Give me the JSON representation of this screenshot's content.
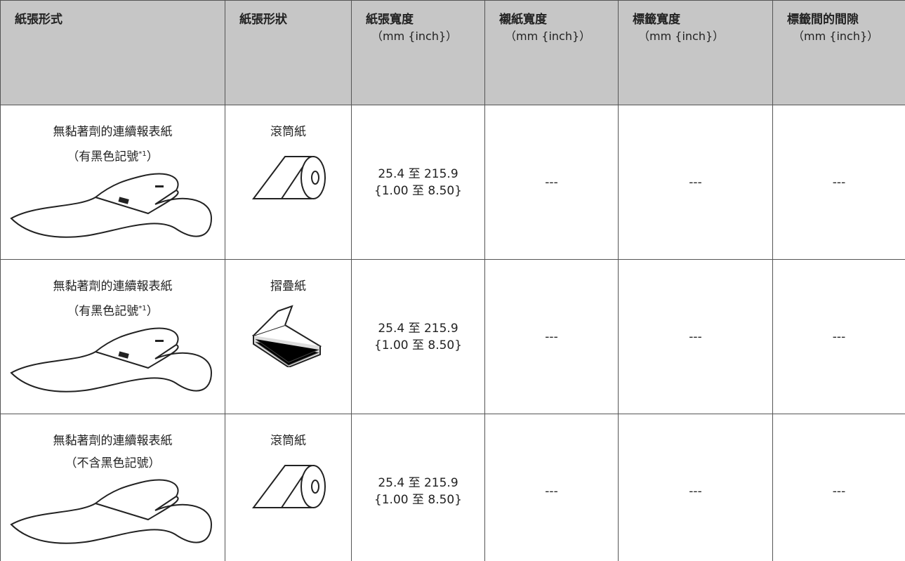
{
  "table": {
    "headers": [
      {
        "title": "紙張形式"
      },
      {
        "title": "紙張形狀"
      },
      {
        "title": "紙張寬度",
        "unit": "（mm {inch}）"
      },
      {
        "title": "襯紙寬度",
        "unit": "（mm {inch}）"
      },
      {
        "title": "標籤寬度",
        "unit": "（mm {inch}）"
      },
      {
        "title": "標籤間的間隙",
        "unit": "（mm {inch}）"
      }
    ],
    "rows": [
      {
        "type": [
          "無黏著劑的連續報表紙",
          {
            "text": "（有黑色記號",
            "sup": "*1",
            "end": "）"
          }
        ],
        "shape": "滾筒紙",
        "paper_width": [
          "25.4 至 215.9",
          "{1.00 至 8.50}"
        ],
        "liner_width": "---",
        "label_width": "---",
        "label_gap": "---"
      },
      {
        "type": [
          "無黏著劑的連續報表紙",
          {
            "text": "（有黑色記號",
            "sup": "*1",
            "end": "）"
          }
        ],
        "shape": "摺疊紙",
        "paper_width": [
          "25.4 至 215.9",
          "{1.00 至 8.50}"
        ],
        "liner_width": "---",
        "label_width": "---",
        "label_gap": "---"
      },
      {
        "type": [
          "無黏著劑的連續報表紙",
          "（不含黑色記號）"
        ],
        "shape": "滾筒紙",
        "paper_width": [
          "25.4 至 215.9",
          "{1.00 至 8.50}"
        ],
        "liner_width": "---",
        "label_width": "---",
        "label_gap": "---"
      }
    ]
  }
}
